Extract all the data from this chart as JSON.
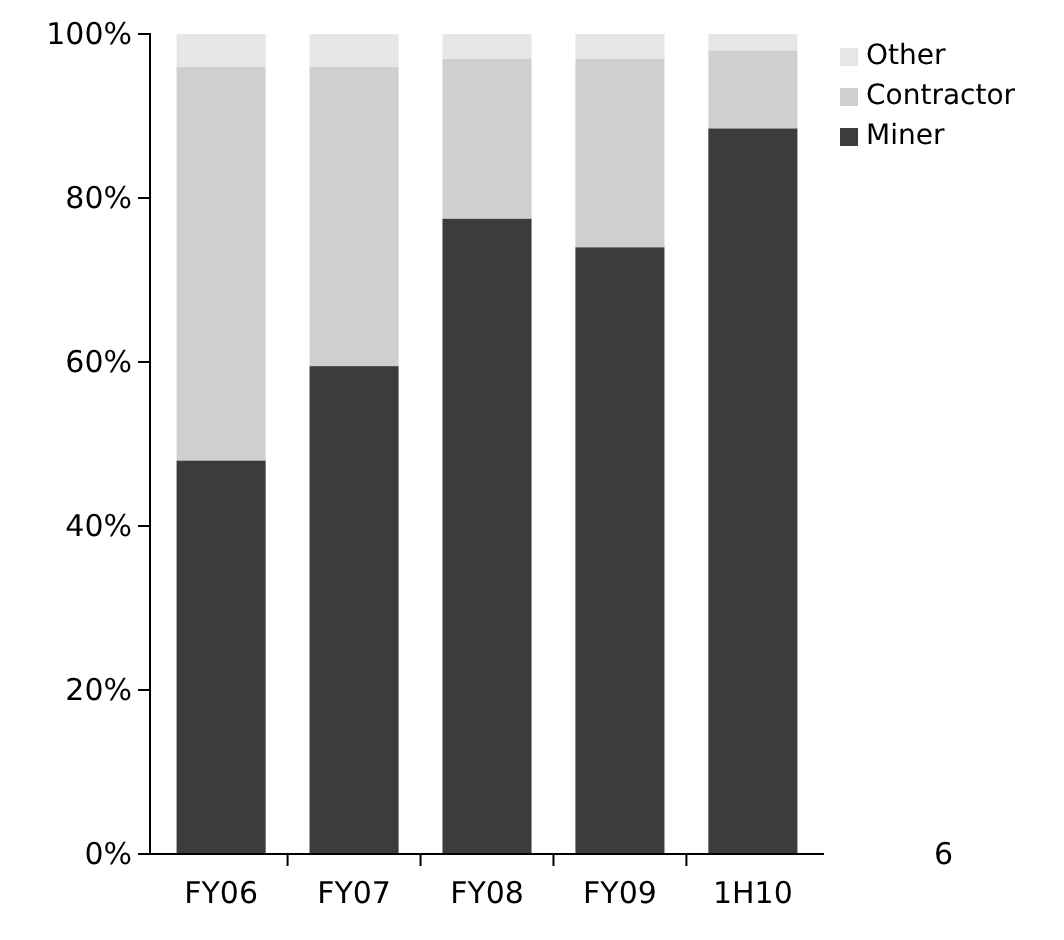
{
  "chart_data": {
    "type": "bar",
    "stacked": true,
    "categories": [
      "FY06",
      "FY07",
      "FY08",
      "FY09",
      "1H10"
    ],
    "series": [
      {
        "name": "Miner",
        "color": "#3c3c3c",
        "values": [
          48,
          59.5,
          77.5,
          74,
          88.5
        ]
      },
      {
        "name": "Contractor",
        "color": "#cfcfcf",
        "values": [
          48,
          36.5,
          19.5,
          23,
          9.5
        ]
      },
      {
        "name": "Other",
        "color": "#e6e6e6",
        "values": [
          4,
          4,
          3,
          3,
          2
        ]
      }
    ],
    "ylim": [
      0,
      100
    ],
    "yticks": [
      {
        "value": 0,
        "label": "0%"
      },
      {
        "value": 20,
        "label": "20%"
      },
      {
        "value": 40,
        "label": "40%"
      },
      {
        "value": 60,
        "label": "60%"
      },
      {
        "value": 80,
        "label": "80%"
      },
      {
        "value": 100,
        "label": "100%"
      }
    ],
    "legend": "top right",
    "annotations": [
      "6"
    ]
  }
}
